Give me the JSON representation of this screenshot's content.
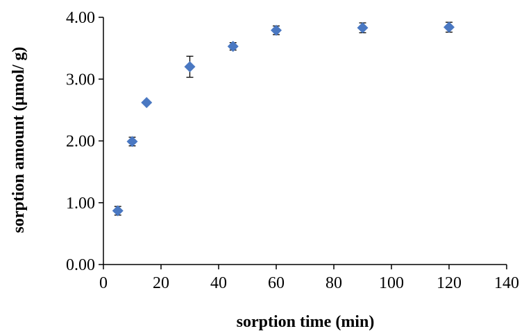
{
  "chart_data": {
    "type": "scatter",
    "title": "",
    "xlabel": "sorption time (min)",
    "ylabel": "sorption amount (μmol/ g)",
    "xlim": [
      0,
      140
    ],
    "ylim": [
      0,
      4
    ],
    "x_ticks": [
      0,
      20,
      40,
      60,
      80,
      100,
      120,
      140
    ],
    "y_ticks": [
      0,
      1,
      2,
      3,
      4
    ],
    "x_tick_labels": [
      "0",
      "20",
      "40",
      "60",
      "80",
      "100",
      "120",
      "140"
    ],
    "y_tick_labels": [
      "0.00",
      "1.00",
      "2.00",
      "3.00",
      "4.00"
    ],
    "grid": false,
    "marker": "diamond",
    "color": "#4a78c2",
    "series": [
      {
        "points": [
          {
            "x": 5,
            "y": 0.87,
            "err": 0.07
          },
          {
            "x": 10,
            "y": 1.99,
            "err": 0.07
          },
          {
            "x": 15,
            "y": 2.62,
            "err": 0.0
          },
          {
            "x": 30,
            "y": 3.2,
            "err": 0.17
          },
          {
            "x": 45,
            "y": 3.53,
            "err": 0.06
          },
          {
            "x": 60,
            "y": 3.79,
            "err": 0.07
          },
          {
            "x": 90,
            "y": 3.83,
            "err": 0.08
          },
          {
            "x": 120,
            "y": 3.84,
            "err": 0.08
          }
        ]
      }
    ]
  }
}
